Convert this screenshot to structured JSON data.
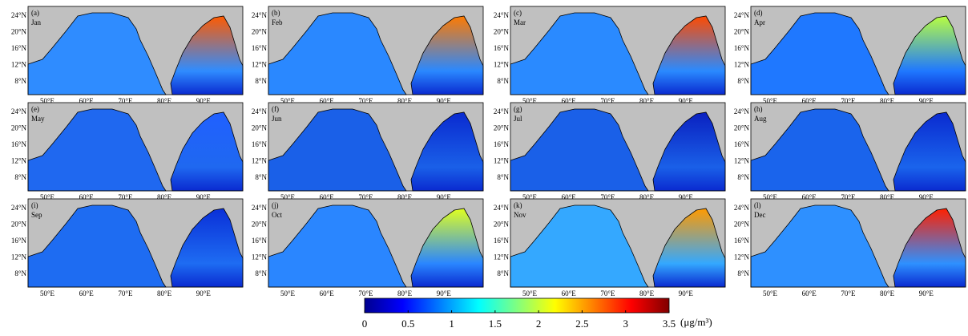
{
  "panels": [
    {
      "letter": "(a)",
      "month": "Jan",
      "sea_colors": [
        "#2f8cff",
        "#ff5a00"
      ]
    },
    {
      "letter": "(b)",
      "month": "Feb",
      "sea_colors": [
        "#2a88ff",
        "#ff7a00"
      ]
    },
    {
      "letter": "(c)",
      "month": "Mar",
      "sea_colors": [
        "#2a8aff",
        "#ff4a00"
      ]
    },
    {
      "letter": "(d)",
      "month": "Apr",
      "sea_colors": [
        "#1f78ff",
        "#b8ff40"
      ]
    },
    {
      "letter": "(e)",
      "month": "May",
      "sea_colors": [
        "#1f68f0",
        "#2060ff"
      ]
    },
    {
      "letter": "(f)",
      "month": "Jun",
      "sea_colors": [
        "#1a60e8",
        "#0a2ad0"
      ]
    },
    {
      "letter": "(g)",
      "month": "Jul",
      "sea_colors": [
        "#1a60e8",
        "#0a20c0"
      ]
    },
    {
      "letter": "(h)",
      "month": "Aug",
      "sea_colors": [
        "#1a64ec",
        "#0a2ad0"
      ]
    },
    {
      "letter": "(i)",
      "month": "Sep",
      "sea_colors": [
        "#1e6cf2",
        "#0a30d8"
      ]
    },
    {
      "letter": "(j)",
      "month": "Oct",
      "sea_colors": [
        "#2a86ff",
        "#e0ff20"
      ]
    },
    {
      "letter": "(k)",
      "month": "Nov",
      "sea_colors": [
        "#34a8ff",
        "#ff9a00"
      ]
    },
    {
      "letter": "(l)",
      "month": "Dec",
      "sea_colors": [
        "#2e90ff",
        "#ff2000"
      ]
    }
  ],
  "lat_ticks": [
    "24°N",
    "20°N",
    "16°N",
    "12°N",
    "8°N"
  ],
  "lon_ticks": [
    "50°E",
    "60°E",
    "70°E",
    "80°E",
    "90°E"
  ],
  "colorbar": {
    "range": [
      0,
      3.5
    ],
    "ticks": [
      0,
      0.5,
      1,
      1.5,
      2,
      2.5,
      3,
      3.5
    ],
    "unit": "(μg/m³)",
    "colors": [
      "#00008f",
      "#0000ff",
      "#0080ff",
      "#00ffff",
      "#80ff80",
      "#ffff00",
      "#ff8000",
      "#ff0000",
      "#800000"
    ]
  }
}
